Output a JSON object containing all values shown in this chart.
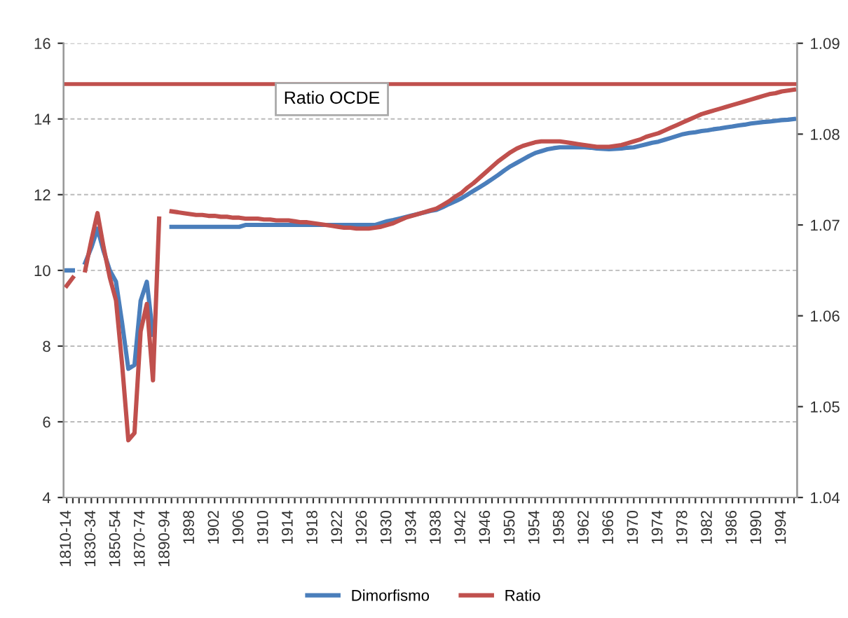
{
  "chart_data": {
    "type": "line",
    "categories": [
      "1810-14",
      null,
      null,
      null,
      "1830-34",
      null,
      null,
      null,
      "1850-54",
      null,
      null,
      null,
      "1870-74",
      null,
      null,
      null,
      "1890-94",
      null,
      null,
      null,
      "1898",
      null,
      null,
      null,
      "1902",
      null,
      null,
      null,
      "1906",
      null,
      null,
      null,
      "1910",
      null,
      null,
      null,
      "1914",
      null,
      null,
      null,
      "1918",
      null,
      null,
      null,
      "1922",
      null,
      null,
      null,
      "1926",
      null,
      null,
      null,
      "1930",
      null,
      null,
      null,
      "1934",
      null,
      null,
      null,
      "1938",
      null,
      null,
      null,
      "1942",
      null,
      null,
      null,
      "1946",
      null,
      null,
      null,
      "1950",
      null,
      null,
      null,
      "1954",
      null,
      null,
      null,
      "1958",
      null,
      null,
      null,
      "1962",
      null,
      null,
      null,
      "1966",
      null,
      null,
      null,
      "1970",
      null,
      null,
      null,
      "1974",
      null,
      null,
      null,
      "1978",
      null,
      null,
      null,
      "1982",
      null,
      null,
      null,
      "1986",
      null,
      null,
      null,
      "1990",
      null,
      null,
      null,
      "1994",
      null,
      null
    ],
    "series": [
      {
        "name": "Dimorfismo",
        "color": "#4a7ebb",
        "values": [
          10.0,
          10.0,
          null,
          10.2,
          10.6,
          11.1,
          10.5,
          10.0,
          9.7,
          8.6,
          7.4,
          7.5,
          9.2,
          9.7,
          8.3,
          null,
          null,
          11.15,
          11.15,
          11.15,
          11.15,
          11.15,
          11.15,
          11.15,
          11.15,
          11.15,
          11.15,
          11.15,
          11.15,
          11.2,
          11.2,
          11.2,
          11.2,
          11.2,
          11.2,
          11.2,
          11.2,
          11.2,
          11.2,
          11.2,
          11.2,
          11.2,
          11.2,
          11.2,
          11.2,
          11.2,
          11.2,
          11.2,
          11.2,
          11.2,
          11.2,
          11.25,
          11.3,
          11.33,
          11.37,
          11.41,
          11.45,
          11.49,
          11.53,
          11.57,
          11.6,
          11.67,
          11.75,
          11.82,
          11.9,
          12.0,
          12.1,
          12.2,
          12.3,
          12.41,
          12.52,
          12.64,
          12.75,
          12.84,
          12.93,
          13.02,
          13.1,
          13.15,
          13.2,
          13.23,
          13.25,
          13.25,
          13.25,
          13.25,
          13.25,
          13.24,
          13.22,
          13.21,
          13.2,
          13.21,
          13.22,
          13.24,
          13.25,
          13.29,
          13.33,
          13.37,
          13.4,
          13.45,
          13.5,
          13.55,
          13.6,
          13.63,
          13.65,
          13.68,
          13.7,
          13.73,
          13.75,
          13.78,
          13.8,
          13.83,
          13.85,
          13.88,
          13.9,
          13.92,
          13.93,
          13.95,
          13.97,
          13.98,
          14.0
        ]
      },
      {
        "name": "Ratio",
        "color": "#c0504d",
        "axis": "y2",
        "values": [
          1.0633,
          1.0642,
          null,
          1.065,
          1.0683,
          1.0713,
          1.0675,
          1.0642,
          1.0617,
          1.0546,
          1.0463,
          1.0471,
          1.0583,
          1.0613,
          1.0529,
          1.0707,
          null,
          1.0715,
          1.0714,
          1.0713,
          1.0712,
          1.0711,
          1.0711,
          1.071,
          1.071,
          1.0709,
          1.0709,
          1.0708,
          1.0708,
          1.0707,
          1.0707,
          1.0707,
          1.0706,
          1.0706,
          1.0705,
          1.0705,
          1.0705,
          1.0704,
          1.0703,
          1.0703,
          1.0702,
          1.0701,
          1.07,
          1.0699,
          1.0698,
          1.0697,
          1.0697,
          1.0696,
          1.0696,
          1.0696,
          1.0697,
          1.0698,
          1.07,
          1.0702,
          1.0705,
          1.0708,
          1.071,
          1.0712,
          1.0714,
          1.0716,
          1.0718,
          1.0722,
          1.0726,
          1.0731,
          1.0735,
          1.0741,
          1.0746,
          1.0752,
          1.0758,
          1.0764,
          1.077,
          1.0775,
          1.078,
          1.0784,
          1.0787,
          1.0789,
          1.0791,
          1.0792,
          1.0792,
          1.0792,
          1.0792,
          1.0791,
          1.079,
          1.0789,
          1.0788,
          1.0787,
          1.0786,
          1.0786,
          1.0786,
          1.0787,
          1.0788,
          1.079,
          1.0792,
          1.0794,
          1.0797,
          1.0799,
          1.0801,
          1.0804,
          1.0807,
          1.081,
          1.0813,
          1.0816,
          1.0819,
          1.0822,
          1.0824,
          1.0826,
          1.0828,
          1.083,
          1.0832,
          1.0834,
          1.0836,
          1.0838,
          1.084,
          1.0842,
          1.0844,
          1.0845,
          1.0847,
          1.0848,
          1.0849
        ]
      }
    ],
    "ylim": [
      4,
      16
    ],
    "yticks": [
      4,
      6,
      8,
      10,
      12,
      14,
      16
    ],
    "y2lim": [
      1.04,
      1.09
    ],
    "y2ticks": [
      1.04,
      1.05,
      1.06,
      1.07,
      1.08,
      1.09
    ],
    "ref_lines": [
      {
        "axis": "y2",
        "value": 1.0855,
        "label": "Ratio OCDE",
        "color": "#c0504d",
        "line_style": "solid"
      }
    ],
    "grid": "y",
    "legend": "bottom",
    "marker": "none",
    "line_style": "solid"
  }
}
